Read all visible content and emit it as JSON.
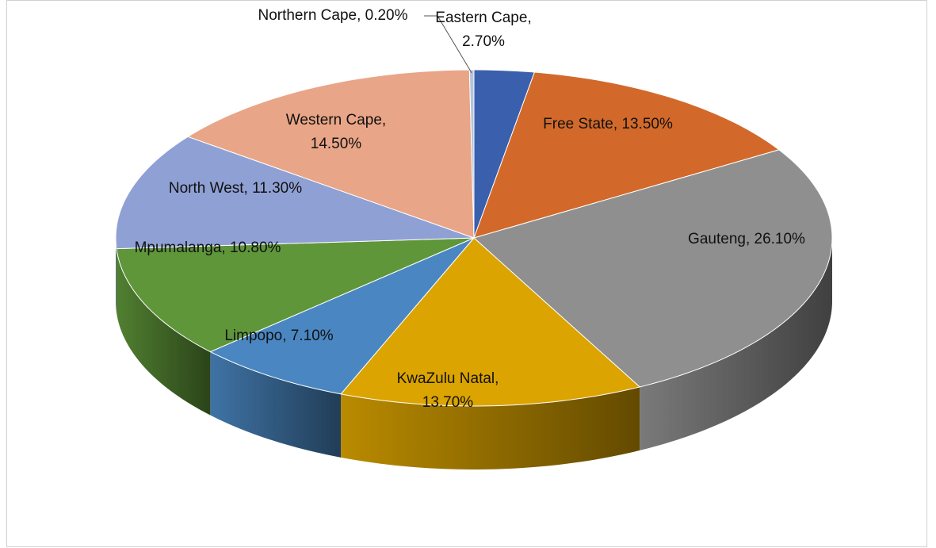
{
  "chart_data": {
    "type": "pie3d",
    "categories": [
      "Eastern Cape",
      "Free State",
      "Gauteng",
      "KwaZulu Natal",
      "Limpopo",
      "Mpumalanga",
      "North West",
      "Western Cape",
      "Northern Cape"
    ],
    "values": [
      2.7,
      13.5,
      26.1,
      13.7,
      7.1,
      10.8,
      11.3,
      14.5,
      0.2
    ],
    "value_labels": [
      "Eastern Cape, 2.70%",
      "Free State, 13.50%",
      "Gauteng, 26.10%",
      "KwaZulu Natal, 13.70%",
      "Limpopo, 7.10%",
      "Mpumalanga, 10.80%",
      "North West, 11.30%",
      "Western Cape, 14.50%",
      "Northern Cape, 0.20%"
    ],
    "colors": [
      "#3a5fad",
      "#d2692a",
      "#8f8f8f",
      "#dba400",
      "#4a87c2",
      "#5f963a",
      "#8fa0d4",
      "#e9a587",
      "#b4c4dc"
    ]
  }
}
